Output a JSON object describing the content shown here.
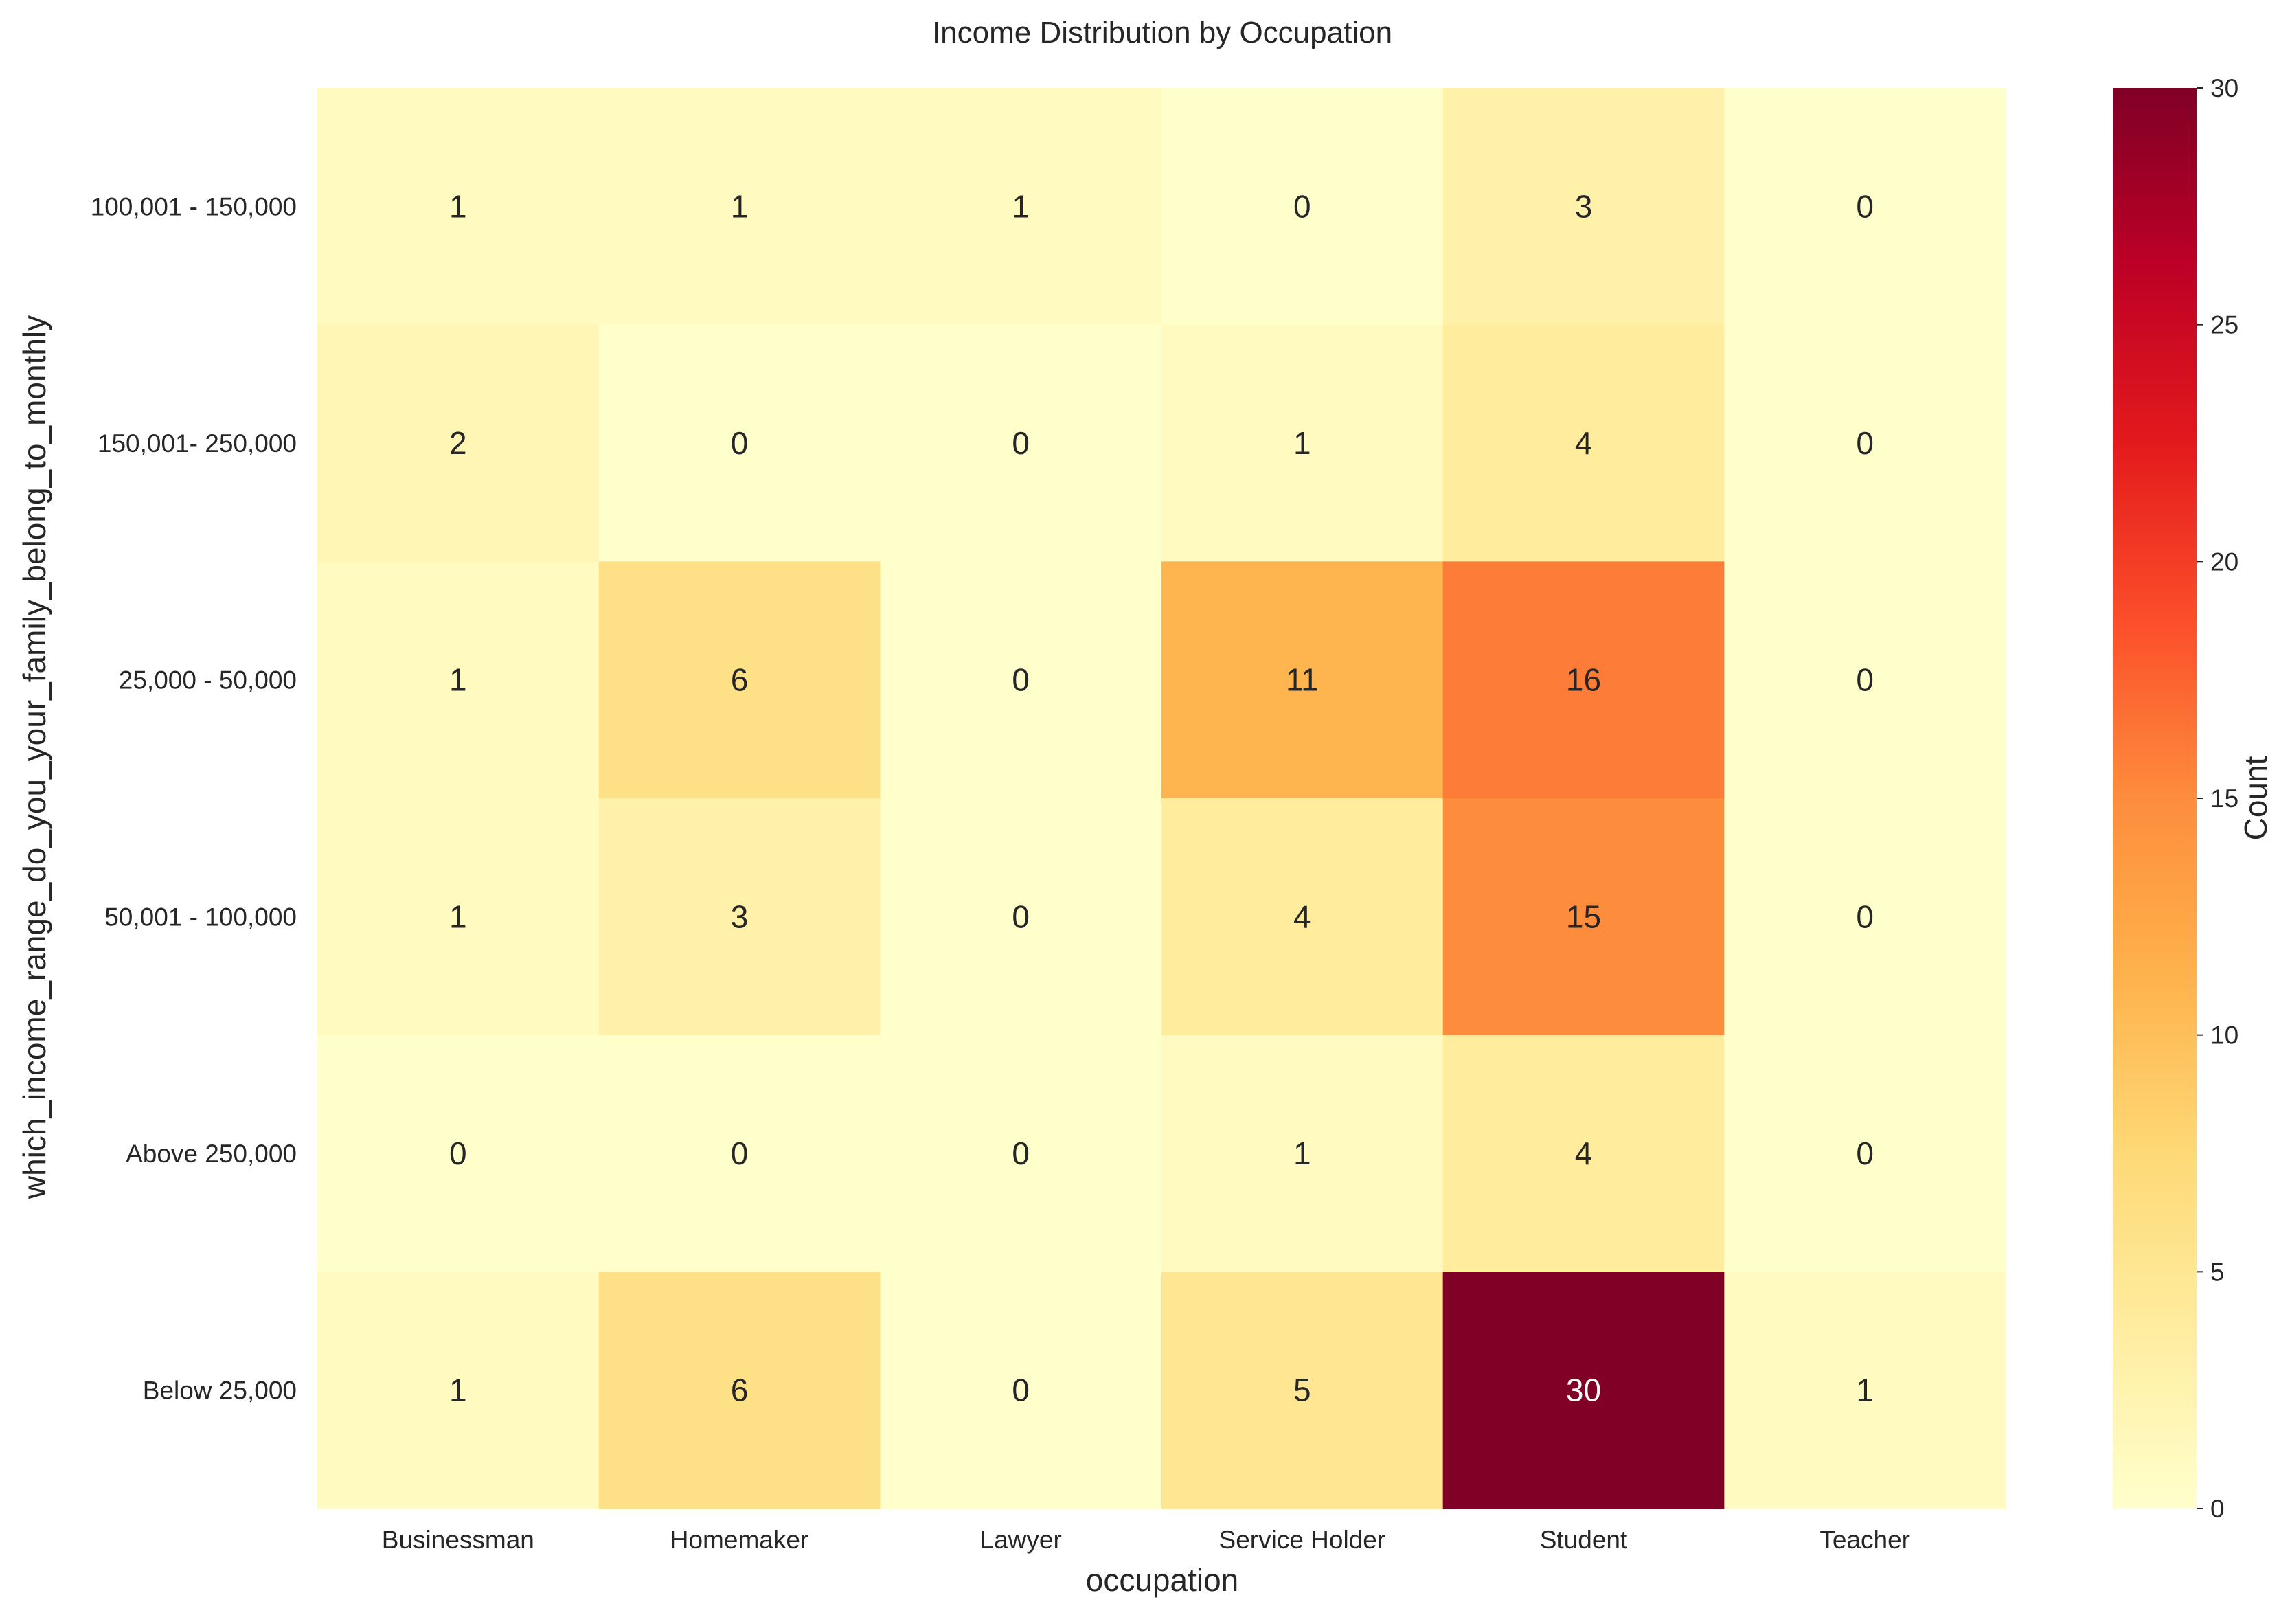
{
  "chart_data": {
    "type": "heatmap",
    "title": "Income Distribution by Occupation",
    "xlabel": "occupation",
    "ylabel": "which_income_range_do_you_your_family_belong_to_monthly",
    "x_categories": [
      "Businessman",
      "Homemaker",
      "Lawyer",
      "Service Holder",
      "Student",
      "Teacher"
    ],
    "y_categories": [
      "100,001 - 150,000",
      "150,001- 250,000",
      "25,000 - 50,000",
      "50,001 - 100,000",
      "Above 250,000",
      "Below 25,000"
    ],
    "values": [
      [
        1,
        1,
        1,
        0,
        3,
        0
      ],
      [
        2,
        0,
        0,
        1,
        4,
        0
      ],
      [
        1,
        6,
        0,
        11,
        16,
        0
      ],
      [
        1,
        3,
        0,
        4,
        15,
        0
      ],
      [
        0,
        0,
        0,
        1,
        4,
        0
      ],
      [
        1,
        6,
        0,
        5,
        30,
        1
      ]
    ],
    "colorscale": "YlOrRd",
    "colorbar": {
      "label": "Count",
      "range": [
        0,
        30
      ],
      "ticks": [
        "0",
        "5",
        "10",
        "15",
        "20",
        "25",
        "30"
      ]
    },
    "annotations_shown": true,
    "grid": false
  }
}
